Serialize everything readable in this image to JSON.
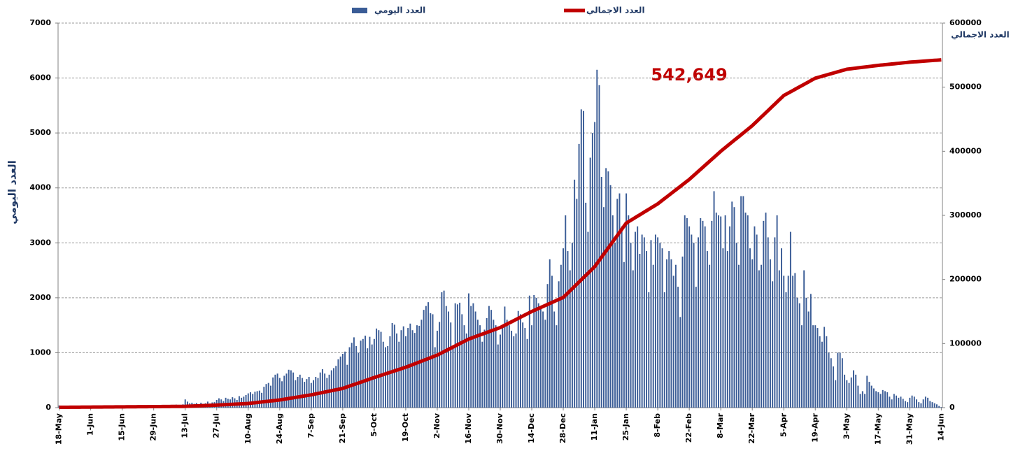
{
  "chart_data": {
    "type": "bar",
    "categories": [
      "18-May",
      null,
      null,
      null,
      null,
      null,
      null,
      null,
      null,
      null,
      null,
      null,
      null,
      null,
      "1-Jun",
      null,
      null,
      null,
      null,
      null,
      null,
      null,
      null,
      null,
      null,
      null,
      null,
      null,
      "15-Jun",
      null,
      null,
      null,
      null,
      null,
      null,
      null,
      null,
      null,
      null,
      null,
      null,
      null,
      "29-Jun",
      null,
      null,
      null,
      null,
      null,
      null,
      null,
      null,
      null,
      null,
      null,
      null,
      null,
      "13-Jul",
      null,
      null,
      null,
      null,
      null,
      null,
      null,
      null,
      null,
      null,
      null,
      null,
      null,
      "27-Jul",
      null,
      null,
      null,
      null,
      null,
      null,
      null,
      null,
      null,
      null,
      null,
      null,
      null,
      "10-Aug",
      null,
      null,
      null,
      null,
      null,
      null,
      null,
      null,
      null,
      null,
      null,
      null,
      null,
      "24-Aug",
      null,
      null,
      null,
      null,
      null,
      null,
      null,
      null,
      null,
      null,
      null,
      null,
      null,
      "7-Sep",
      null,
      null,
      null,
      null,
      null,
      null,
      null,
      null,
      null,
      null,
      null,
      null,
      null,
      "21-Sep",
      null,
      null,
      null,
      null,
      null,
      null,
      null,
      null,
      null,
      null,
      null,
      null,
      null,
      "5-Oct",
      null,
      null,
      null,
      null,
      null,
      null,
      null,
      null,
      null,
      null,
      null,
      null,
      null,
      "19-Oct",
      null,
      null,
      null,
      null,
      null,
      null,
      null,
      null,
      null,
      null,
      null,
      null,
      null,
      "2-Nov",
      null,
      null,
      null,
      null,
      null,
      null,
      null,
      null,
      null,
      null,
      null,
      null,
      null,
      "16-Nov",
      null,
      null,
      null,
      null,
      null,
      null,
      null,
      null,
      null,
      null,
      null,
      null,
      null,
      "30-Nov",
      null,
      null,
      null,
      null,
      null,
      null,
      null,
      null,
      null,
      null,
      null,
      null,
      null,
      "14-Dec",
      null,
      null,
      null,
      null,
      null,
      null,
      null,
      null,
      null,
      null,
      null,
      null,
      null,
      "28-Dec",
      null,
      null,
      null,
      null,
      null,
      null,
      null,
      null,
      null,
      null,
      null,
      null,
      null,
      "11-Jan",
      null,
      null,
      null,
      null,
      null,
      null,
      null,
      null,
      null,
      null,
      null,
      null,
      null,
      "25-Jan",
      null,
      null,
      null,
      null,
      null,
      null,
      null,
      null,
      null,
      null,
      null,
      null,
      null,
      "8-Feb",
      null,
      null,
      null,
      null,
      null,
      null,
      null,
      null,
      null,
      null,
      null,
      null,
      null,
      "22-Feb",
      null,
      null,
      null,
      null,
      null,
      null,
      null,
      null,
      null,
      null,
      null,
      null,
      null,
      "8-Mar",
      null,
      null,
      null,
      null,
      null,
      null,
      null,
      null,
      null,
      null,
      null,
      null,
      null,
      "22-Mar",
      null,
      null,
      null,
      null,
      null,
      null,
      null,
      null,
      null,
      null,
      null,
      null,
      null,
      "5-Apr",
      null,
      null,
      null,
      null,
      null,
      null,
      null,
      null,
      null,
      null,
      null,
      null,
      null,
      "19-Apr",
      null,
      null,
      null,
      null,
      null,
      null,
      null,
      null,
      null,
      null,
      null,
      null,
      null,
      "3-May",
      null,
      null,
      null,
      null,
      null,
      null,
      null,
      null,
      null,
      null,
      null,
      null,
      null,
      "17-May",
      null,
      null,
      null,
      null,
      null,
      null,
      null,
      null,
      null,
      null,
      null,
      null,
      null,
      "31-May",
      null,
      null,
      null,
      null,
      null,
      null,
      null,
      null,
      null,
      null,
      null,
      null,
      null,
      "14-Jun"
    ],
    "series": [
      {
        "name": "العدد اليومي",
        "color": "#3a5c96",
        "values": [
          40,
          30,
          20,
          25,
          30,
          20,
          15,
          20,
          25,
          15,
          10,
          20,
          25,
          15,
          20,
          15,
          25,
          30,
          20,
          15,
          10,
          15,
          20,
          25,
          20,
          30,
          25,
          20,
          25,
          20,
          30,
          35,
          25,
          20,
          30,
          30,
          35,
          25,
          30,
          40,
          35,
          30,
          35,
          40,
          30,
          45,
          40,
          35,
          40,
          45,
          50,
          40,
          55,
          50,
          45,
          60,
          150,
          110,
          80,
          90,
          70,
          85,
          60,
          90,
          70,
          80,
          110,
          75,
          95,
          100,
          140,
          170,
          150,
          120,
          180,
          160,
          150,
          190,
          170,
          140,
          210,
          180,
          200,
          230,
          260,
          280,
          250,
          290,
          300,
          310,
          270,
          380,
          430,
          450,
          400,
          550,
          600,
          620,
          540,
          480,
          580,
          620,
          690,
          680,
          640,
          500,
          560,
          600,
          540,
          470,
          520,
          560,
          450,
          500,
          560,
          540,
          640,
          700,
          620,
          540,
          600,
          680,
          720,
          760,
          880,
          930,
          980,
          1020,
          780,
          1100,
          1180,
          1280,
          1120,
          1000,
          1220,
          1250,
          1310,
          1080,
          1290,
          1150,
          1250,
          1440,
          1410,
          1380,
          1200,
          1100,
          1120,
          1300,
          1540,
          1510,
          1350,
          1200,
          1410,
          1480,
          1300,
          1450,
          1530,
          1410,
          1360,
          1500,
          1490,
          1600,
          1780,
          1850,
          1920,
          1720,
          1700,
          1100,
          1400,
          1560,
          2100,
          2130,
          1850,
          1750,
          1550,
          1100,
          1900,
          1880,
          1910,
          1700,
          1500,
          1350,
          2080,
          1850,
          1900,
          1750,
          1600,
          1500,
          1200,
          1420,
          1630,
          1850,
          1780,
          1600,
          1500,
          1150,
          1330,
          1480,
          1840,
          1600,
          1500,
          1400,
          1300,
          1350,
          1760,
          1700,
          1550,
          1450,
          1250,
          2040,
          1500,
          2050,
          2000,
          1900,
          1800,
          1750,
          1600,
          2250,
          2700,
          2400,
          1750,
          1500,
          2300,
          2600,
          2900,
          3500,
          2850,
          2500,
          3000,
          4150,
          3800,
          4800,
          5430,
          5400,
          3730,
          3200,
          4550,
          5000,
          5200,
          6150,
          5870,
          4200,
          3650,
          4360,
          4300,
          4050,
          3500,
          3000,
          3800,
          3900,
          3300,
          2650,
          3900,
          3500,
          3000,
          2500,
          3200,
          3300,
          2800,
          3150,
          3100,
          2850,
          2100,
          3050,
          2600,
          3150,
          3100,
          3000,
          2900,
          2100,
          2700,
          2850,
          2700,
          2400,
          2600,
          2200,
          1650,
          2750,
          3500,
          3450,
          3300,
          3150,
          3000,
          2200,
          3100,
          3450,
          3400,
          3300,
          2850,
          2600,
          3400,
          3940,
          3550,
          3500,
          3480,
          2900,
          3500,
          2850,
          3300,
          3750,
          3650,
          3000,
          2600,
          3850,
          3850,
          3550,
          3500,
          2900,
          2700,
          3300,
          3150,
          2500,
          2600,
          3400,
          3550,
          3100,
          2700,
          2300,
          3100,
          3500,
          2500,
          2900,
          2400,
          2100,
          2400,
          3200,
          2400,
          2450,
          2000,
          1900,
          1500,
          2500,
          2000,
          1750,
          2070,
          1500,
          1500,
          1450,
          1300,
          1200,
          1470,
          1300,
          1000,
          900,
          750,
          500,
          1000,
          1000,
          900,
          600,
          500,
          450,
          550,
          680,
          600,
          400,
          250,
          300,
          250,
          580,
          470,
          400,
          350,
          300,
          280,
          250,
          320,
          300,
          280,
          200,
          150,
          250,
          220,
          180,
          200,
          160,
          120,
          100,
          180,
          220,
          200,
          150,
          100,
          80,
          150,
          200,
          180,
          120,
          100,
          80,
          60,
          30,
          10
        ]
      },
      {
        "name": "العدد الاجمالي",
        "color": "#c00000",
        "type": "line",
        "axis": "y2",
        "values": [
          500,
          530,
          550,
          580,
          610,
          630,
          660,
          690,
          710,
          740,
          770,
          790,
          820,
          850,
          870,
          900,
          930,
          950,
          980,
          1010,
          1040,
          1060,
          1090,
          1120,
          1140,
          1170,
          1200,
          1220,
          1250,
          1280,
          1300,
          1330,
          1360,
          1380,
          1410,
          1440,
          1460,
          1490,
          1520,
          1540,
          1570,
          1600,
          1620,
          1650,
          1680,
          1700,
          1730,
          1760,
          1780,
          1810,
          1840,
          1860,
          1890,
          1920,
          1950,
          1970,
          2000,
          2140,
          2290,
          2430,
          2570,
          2710,
          2860,
          3000,
          3140,
          3290,
          3430,
          3570,
          3710,
          3860,
          4000,
          4180,
          4360,
          4540,
          4710,
          4890,
          5070,
          5250,
          5430,
          5610,
          5790,
          5960,
          6140,
          6320,
          6500,
          6890,
          7290,
          7680,
          8070,
          8460,
          8860,
          9250,
          9640,
          10040,
          10430,
          10820,
          11210,
          11610,
          12000,
          12570,
          13140,
          13710,
          14290,
          14860,
          15430,
          16000,
          16570,
          17140,
          17710,
          18290,
          18860,
          19430,
          20000,
          20710,
          21430,
          22140,
          22860,
          23570,
          24290,
          25000,
          25710,
          26430,
          27140,
          27860,
          28570,
          29290,
          30000,
          31210,
          32430,
          33640,
          34860,
          36070,
          37290,
          38500,
          39710,
          40930,
          42140,
          43360,
          44570,
          45790,
          47000,
          48140,
          49290,
          50430,
          51570,
          52710,
          53860,
          55000,
          56140,
          57290,
          58430,
          59570,
          60710,
          61860,
          63000,
          64360,
          65710,
          67070,
          68430,
          69790,
          71140,
          72500,
          73860,
          75210,
          76570,
          77930,
          79290,
          80640,
          82000,
          83790,
          85570,
          87360,
          89140,
          90930,
          92710,
          94500,
          96290,
          98070,
          99860,
          101640,
          103430,
          105210,
          107000,
          108290,
          109570,
          110860,
          112140,
          113430,
          114710,
          116000,
          117290,
          118570,
          119860,
          121140,
          122430,
          123710,
          125000,
          126790,
          128570,
          130360,
          132140,
          133930,
          135710,
          137500,
          139290,
          141070,
          142860,
          144640,
          146430,
          148210,
          150000,
          151570,
          153140,
          154710,
          156290,
          157860,
          159430,
          161000,
          162570,
          164140,
          165710,
          167290,
          168860,
          170430,
          172000,
          175430,
          178860,
          182290,
          185710,
          189140,
          192570,
          196000,
          199430,
          202860,
          206290,
          209710,
          213140,
          216570,
          220000,
          224860,
          229710,
          234570,
          239430,
          244290,
          249140,
          254000,
          258860,
          263710,
          268570,
          273430,
          278290,
          283140,
          288000,
          290140,
          292290,
          294430,
          296570,
          298710,
          300860,
          303000,
          305140,
          307290,
          309430,
          311570,
          313710,
          315860,
          318000,
          320710,
          323430,
          326140,
          328860,
          331570,
          334290,
          337000,
          339710,
          342430,
          345140,
          347860,
          350570,
          353290,
          356000,
          359140,
          362290,
          365430,
          368570,
          371710,
          374860,
          378000,
          381140,
          384290,
          387430,
          390570,
          393710,
          396860,
          400000,
          402860,
          405710,
          408570,
          411430,
          414290,
          417140,
          420000,
          422860,
          425710,
          428570,
          431430,
          434290,
          437140,
          440000,
          443360,
          446710,
          450070,
          453430,
          456790,
          460140,
          463500,
          466860,
          470210,
          473570,
          476930,
          480290,
          483640,
          487000,
          488930,
          490860,
          492790,
          494710,
          496640,
          498570,
          500500,
          502430,
          504360,
          506290,
          508210,
          510140,
          512070,
          514000,
          515000,
          516000,
          517000,
          518000,
          519000,
          520000,
          521000,
          522000,
          523000,
          524000,
          525000,
          526000,
          527000,
          528000,
          528430,
          528860,
          529290,
          529710,
          530140,
          530570,
          531000,
          531430,
          531860,
          532290,
          532710,
          533140,
          533570,
          534000,
          534360,
          534710,
          535070,
          535430,
          535790,
          536140,
          536500,
          536860,
          537210,
          537570,
          537930,
          538290,
          538640,
          539000,
          539260,
          539520,
          539780,
          540040,
          540300,
          540560,
          540820,
          541070,
          541330,
          541590,
          541850,
          542110,
          542370,
          542649
        ]
      }
    ],
    "ylabel": "العدد اليومي",
    "y2label": "العدد الاجمالي",
    "ylim": [
      0,
      7000
    ],
    "yticks": [
      0,
      1000,
      2000,
      3000,
      4000,
      5000,
      6000,
      7000
    ],
    "y2lim": [
      0,
      600000
    ],
    "y2ticks": [
      0,
      100000,
      200000,
      300000,
      400000,
      500000,
      600000
    ],
    "annotation": "542,649",
    "grid": true
  }
}
